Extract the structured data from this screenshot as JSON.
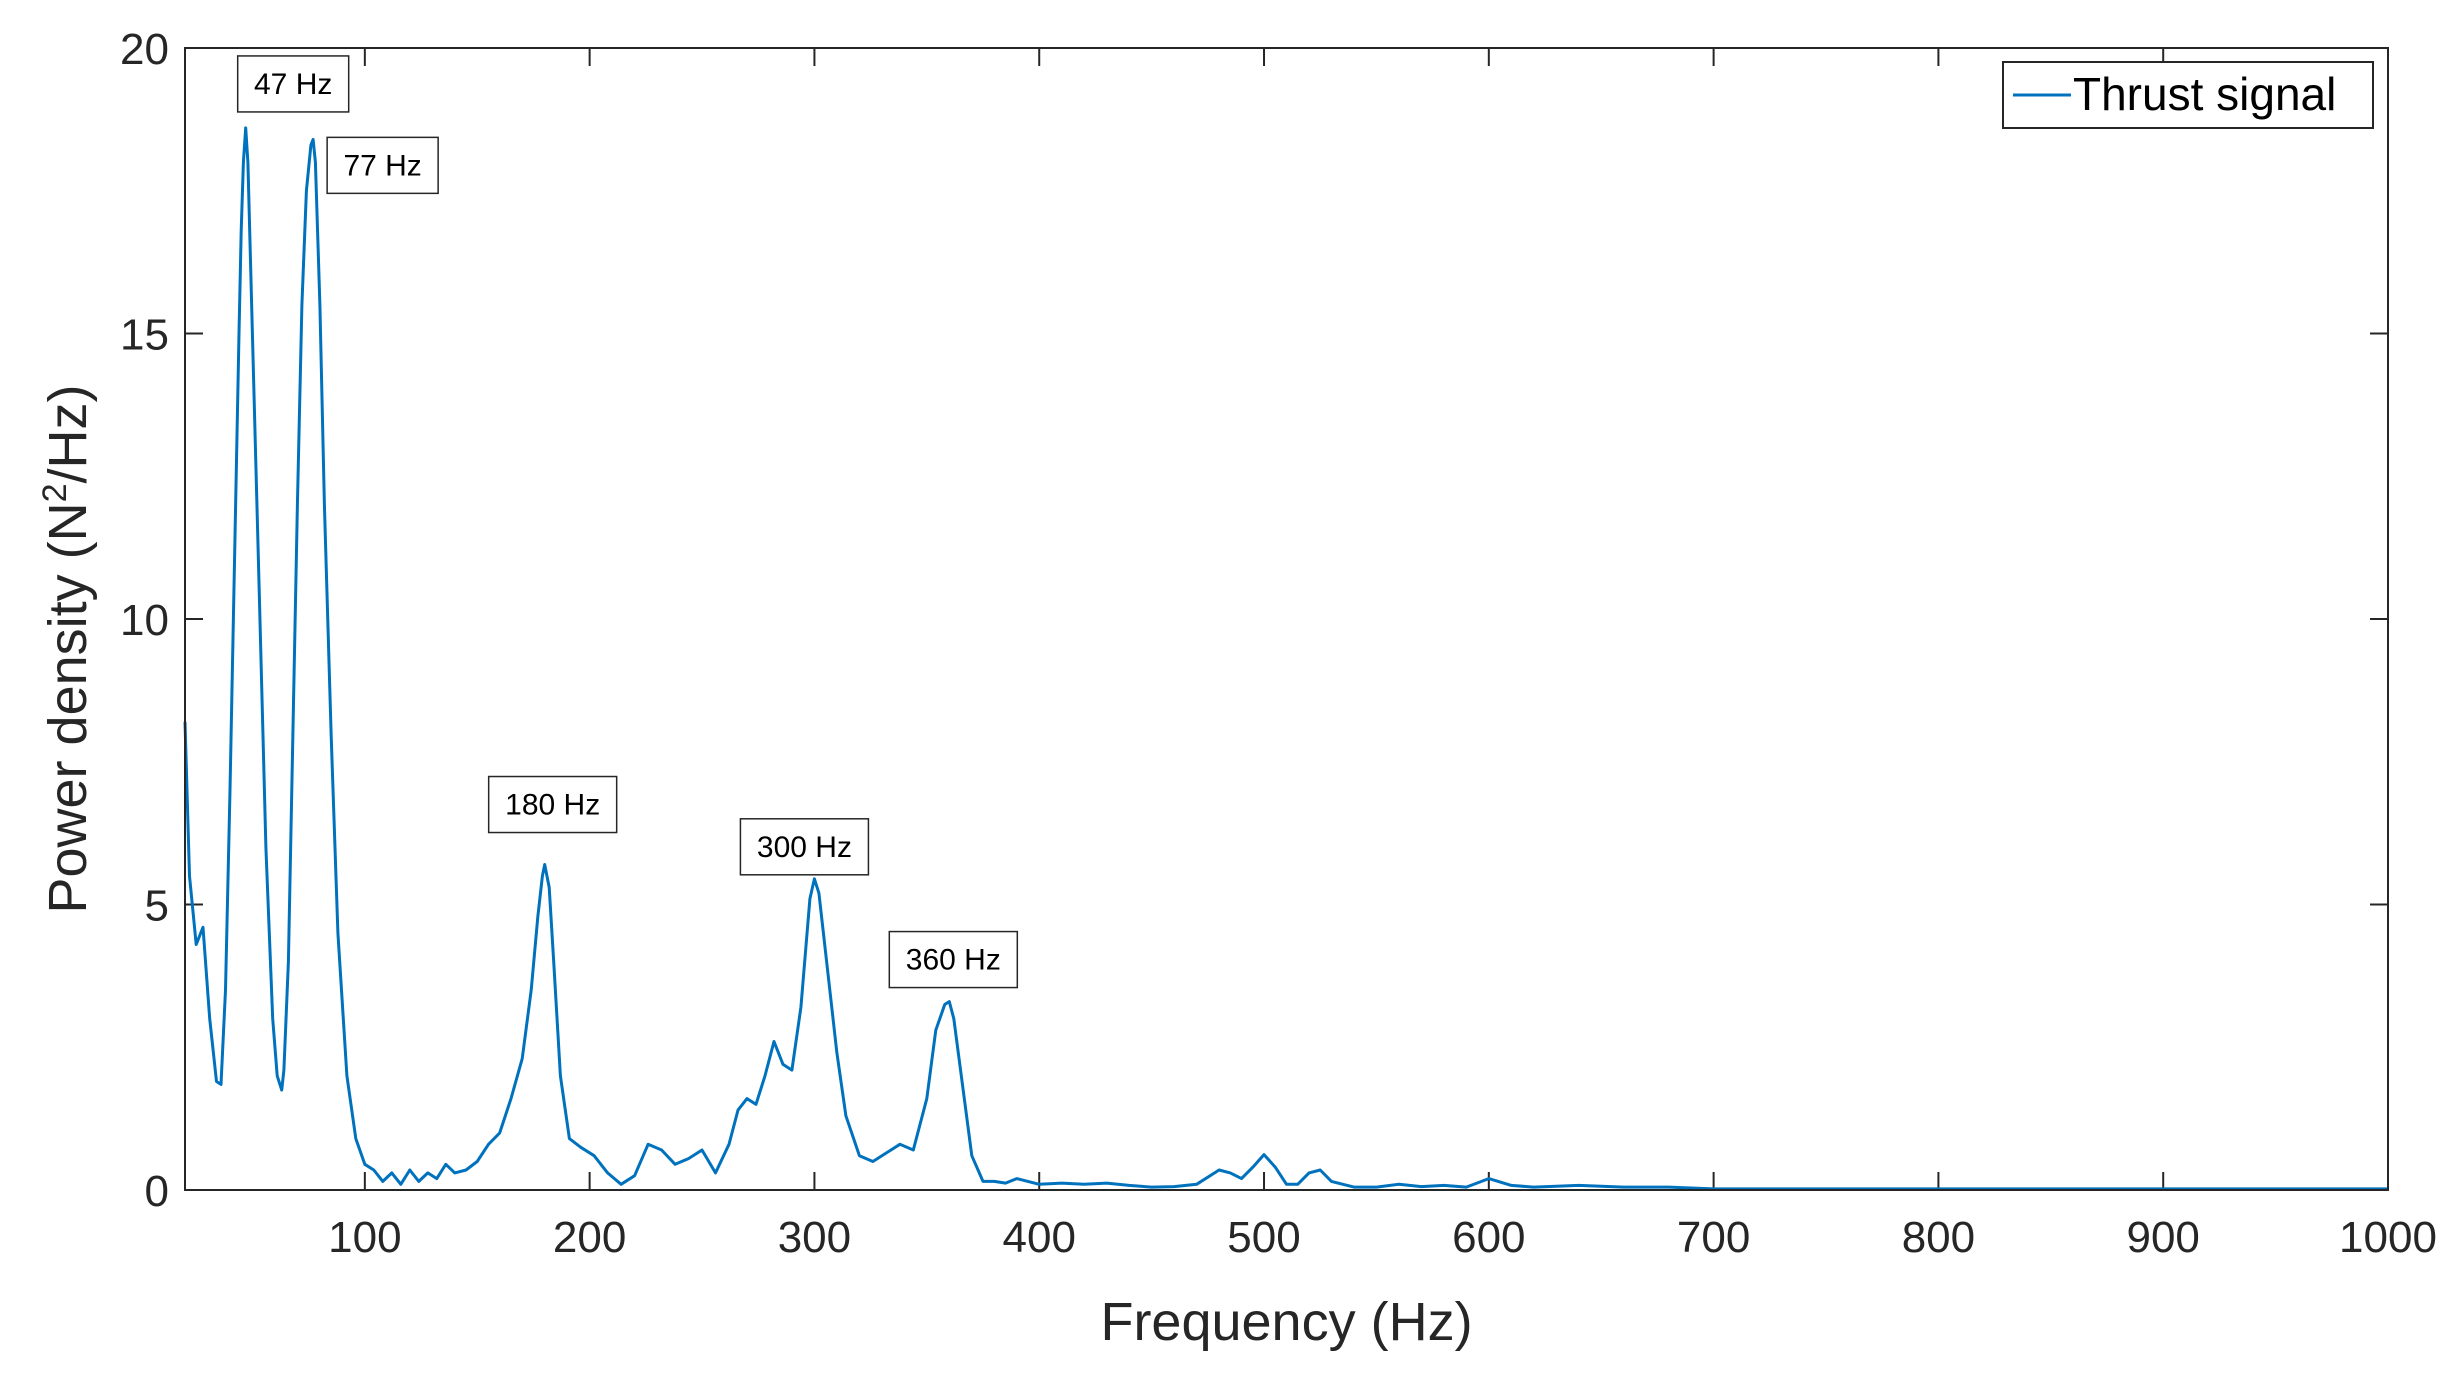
{
  "chart_data": {
    "type": "line",
    "title": "",
    "xlabel": "Frequency (Hz)",
    "ylabel": {
      "prefix": "Power density (N",
      "superscript": "2",
      "suffix": "/Hz)"
    },
    "xlim": [
      20,
      1000
    ],
    "ylim": [
      0,
      20
    ],
    "xticks": [
      100,
      200,
      300,
      400,
      500,
      600,
      700,
      800,
      900,
      1000
    ],
    "yticks": [
      0,
      5,
      10,
      15,
      20
    ],
    "grid": false,
    "legend": {
      "position": "top-right",
      "entries": [
        "Thrust signal"
      ]
    },
    "colors": {
      "series": "#0072BD",
      "axis": "#262626"
    },
    "series": [
      {
        "name": "Thrust signal",
        "x": [
          20,
          22,
          25,
          28,
          31,
          34,
          36,
          38,
          40,
          42,
          44,
          45,
          46,
          47,
          48,
          50,
          53,
          56,
          59,
          61,
          63,
          64,
          66,
          68,
          70,
          72,
          74,
          76,
          77,
          78,
          80,
          82,
          85,
          88,
          92,
          96,
          100,
          104,
          108,
          112,
          116,
          120,
          124,
          128,
          132,
          136,
          140,
          145,
          150,
          155,
          160,
          165,
          170,
          174,
          177,
          179,
          180,
          182,
          184,
          187,
          191,
          196,
          202,
          208,
          214,
          220,
          226,
          232,
          238,
          244,
          250,
          256,
          262,
          266,
          270,
          274,
          278,
          282,
          286,
          290,
          294,
          298,
          300,
          302,
          306,
          310,
          314,
          320,
          326,
          332,
          338,
          344,
          350,
          354,
          358,
          360,
          362,
          366,
          370,
          375,
          380,
          385,
          390,
          400,
          410,
          420,
          430,
          440,
          450,
          460,
          470,
          480,
          485,
          490,
          495,
          500,
          505,
          510,
          515,
          520,
          525,
          530,
          540,
          550,
          560,
          570,
          580,
          590,
          600,
          610,
          620,
          640,
          660,
          680,
          700,
          750,
          800,
          850,
          900,
          950,
          1000
        ],
        "y": [
          8.2,
          5.5,
          4.3,
          4.6,
          3.0,
          1.9,
          1.85,
          3.5,
          7.0,
          11.0,
          15.0,
          16.8,
          18.0,
          18.6,
          18.0,
          15.0,
          10.5,
          6.0,
          3.0,
          2.0,
          1.75,
          2.1,
          4.0,
          8.0,
          12.0,
          15.5,
          17.5,
          18.3,
          18.4,
          18.0,
          15.5,
          12.0,
          8.0,
          4.5,
          2.0,
          0.9,
          0.45,
          0.35,
          0.15,
          0.3,
          0.1,
          0.35,
          0.15,
          0.3,
          0.2,
          0.45,
          0.3,
          0.35,
          0.5,
          0.8,
          1.0,
          1.6,
          2.3,
          3.5,
          4.8,
          5.5,
          5.7,
          5.3,
          4.0,
          2.0,
          0.9,
          0.75,
          0.6,
          0.3,
          0.1,
          0.25,
          0.8,
          0.7,
          0.45,
          0.55,
          0.7,
          0.3,
          0.8,
          1.4,
          1.6,
          1.5,
          2.0,
          2.6,
          2.2,
          2.1,
          3.2,
          5.1,
          5.45,
          5.2,
          3.8,
          2.4,
          1.3,
          0.6,
          0.5,
          0.65,
          0.8,
          0.7,
          1.6,
          2.8,
          3.25,
          3.3,
          3.0,
          1.8,
          0.6,
          0.15,
          0.15,
          0.12,
          0.2,
          0.1,
          0.12,
          0.1,
          0.12,
          0.08,
          0.05,
          0.06,
          0.1,
          0.35,
          0.3,
          0.2,
          0.4,
          0.62,
          0.4,
          0.1,
          0.1,
          0.3,
          0.35,
          0.15,
          0.05,
          0.05,
          0.1,
          0.06,
          0.08,
          0.05,
          0.2,
          0.08,
          0.05,
          0.08,
          0.05,
          0.05,
          0.02,
          0.02,
          0.02,
          0.02,
          0.02,
          0.02,
          0.02
        ]
      }
    ],
    "annotations": [
      {
        "text": "47 Hz",
        "x": 47,
        "y": 18.6
      },
      {
        "text": "77 Hz",
        "x": 77,
        "y": 18.4
      },
      {
        "text": "180 Hz",
        "x": 180,
        "y": 5.7
      },
      {
        "text": "300 Hz",
        "x": 300,
        "y": 5.45
      },
      {
        "text": "360 Hz",
        "x": 360,
        "y": 3.3
      }
    ]
  }
}
